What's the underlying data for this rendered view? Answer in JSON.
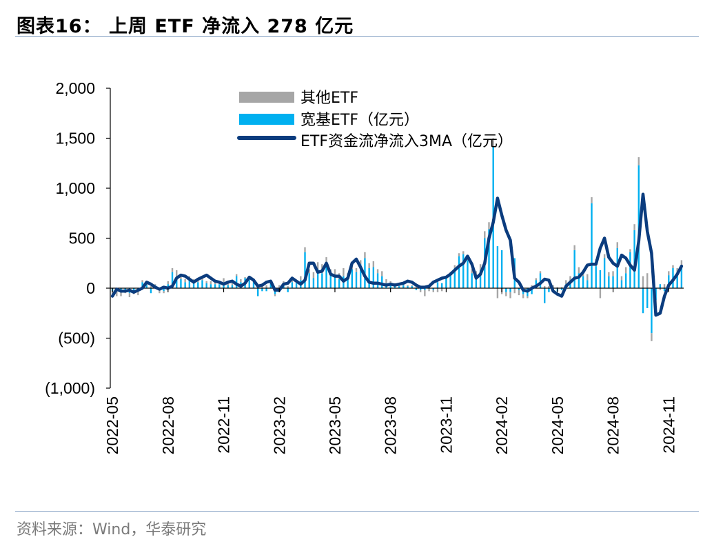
{
  "header": {
    "title": "图表16： 上周 ETF 净流入 278 亿元"
  },
  "footer": {
    "source": "资料来源：Wind，华泰研究"
  },
  "colors": {
    "other_etf": "#a6a6a6",
    "broad_etf": "#00b0f0",
    "ma_line": "#0b3c7e",
    "rule": "#7f9cc0"
  },
  "chart_data": {
    "type": "bar",
    "title": "",
    "xlabel": "",
    "ylabel": "",
    "ylim": [
      -1000,
      2000
    ],
    "y_ticks": [
      2000,
      1500,
      1000,
      500,
      0,
      -500,
      -1000
    ],
    "y_tick_labels": [
      "2,000",
      "1,500",
      "1,000",
      "500",
      "0",
      "(500)",
      "(1,000)"
    ],
    "x_tick_labels": [
      "2022-05",
      "2022-08",
      "2022-11",
      "2023-02",
      "2023-05",
      "2023-08",
      "2023-11",
      "2024-02",
      "2024-05",
      "2024-08",
      "2024-11"
    ],
    "x_tick_index": [
      0,
      13,
      26,
      39,
      52,
      65,
      78,
      91,
      104,
      117,
      130
    ],
    "legend_position": "top-center",
    "series": [
      {
        "name": "其他ETF",
        "kind": "bar",
        "values": [
          -50,
          -60,
          -40,
          -30,
          -40,
          -30,
          -50,
          20,
          40,
          20,
          10,
          -30,
          -20,
          30,
          40,
          60,
          40,
          30,
          30,
          20,
          30,
          20,
          20,
          30,
          20,
          20,
          40,
          20,
          20,
          20,
          30,
          10,
          20,
          10,
          20,
          20,
          30,
          20,
          -20,
          30,
          20,
          20,
          30,
          30,
          40,
          50,
          40,
          60,
          70,
          90,
          60,
          50,
          70,
          60,
          80,
          50,
          40,
          40,
          40,
          60,
          50,
          60,
          40,
          50,
          40,
          30,
          20,
          20,
          20,
          10,
          10,
          10,
          -20,
          -60,
          -30,
          -20,
          -40,
          -30,
          20,
          20,
          30,
          30,
          30,
          50,
          40,
          50,
          60,
          70,
          70,
          80,
          -100,
          -60,
          -40,
          -60,
          -50,
          -50,
          -40,
          -20,
          30,
          20,
          20,
          20,
          20,
          30,
          10,
          10,
          40,
          60,
          50,
          60,
          40,
          60,
          60,
          70,
          -100,
          40,
          40,
          50,
          60,
          40,
          60,
          30,
          60,
          80,
          120,
          150,
          -80,
          -50,
          -20,
          40,
          40,
          30,
          50,
          60
        ],
        "color": "#a6a6a6"
      },
      {
        "name": "宽基ETF（亿元）",
        "kind": "bar",
        "values": [
          -30,
          -20,
          -40,
          -20,
          -50,
          -30,
          -20,
          60,
          30,
          -50,
          30,
          -20,
          -30,
          40,
          160,
          120,
          90,
          60,
          90,
          70,
          60,
          80,
          50,
          40,
          40,
          40,
          60,
          30,
          30,
          120,
          60,
          100,
          80,
          60,
          -80,
          -30,
          -30,
          50,
          -60,
          -40,
          50,
          -40,
          60,
          50,
          80,
          360,
          150,
          100,
          190,
          150,
          250,
          140,
          120,
          90,
          120,
          100,
          190,
          160,
          240,
          300,
          200,
          210,
          150,
          120,
          50,
          40,
          30,
          20,
          30,
          20,
          20,
          -20,
          -20,
          -20,
          20,
          -20,
          60,
          50,
          100,
          140,
          200,
          320,
          340,
          280,
          150,
          120,
          180,
          500,
          590,
          1420,
          420,
          380,
          -40,
          -40,
          300,
          -20,
          -60,
          -80,
          -60,
          80,
          150,
          -150,
          -40,
          -40,
          -30,
          -20,
          40,
          60,
          380,
          150,
          120,
          80,
          850,
          220,
          180,
          300,
          120,
          120,
          400,
          80,
          150,
          360,
          580,
          1230,
          -250,
          -200,
          -450,
          -120,
          40,
          -30,
          130,
          200,
          150,
          220
        ],
        "color": "#00b0f0"
      },
      {
        "name": "ETF资金流净流入3MA（亿元）",
        "kind": "line",
        "values": [
          -80,
          -10,
          -30,
          -30,
          -20,
          -40,
          -20,
          0,
          60,
          40,
          10,
          -10,
          10,
          0,
          20,
          100,
          130,
          120,
          90,
          60,
          90,
          110,
          130,
          100,
          70,
          60,
          40,
          60,
          70,
          40,
          20,
          50,
          110,
          80,
          20,
          30,
          60,
          70,
          -20,
          -20,
          40,
          50,
          100,
          70,
          40,
          80,
          250,
          250,
          160,
          170,
          250,
          140,
          120,
          120,
          70,
          100,
          250,
          290,
          210,
          120,
          60,
          50,
          50,
          40,
          30,
          40,
          30,
          40,
          50,
          70,
          60,
          30,
          10,
          10,
          20,
          60,
          80,
          100,
          110,
          140,
          180,
          220,
          250,
          320,
          240,
          100,
          140,
          250,
          500,
          660,
          900,
          730,
          580,
          480,
          100,
          60,
          -20,
          -30,
          0,
          20,
          50,
          90,
          80,
          -30,
          -60,
          -80,
          20,
          60,
          100,
          110,
          160,
          230,
          240,
          240,
          400,
          500,
          310,
          250,
          220,
          330,
          300,
          230,
          180,
          470,
          940,
          570,
          350,
          -270,
          -250,
          -80,
          30,
          80,
          140,
          220
        ],
        "color": "#0b3c7e"
      }
    ]
  }
}
